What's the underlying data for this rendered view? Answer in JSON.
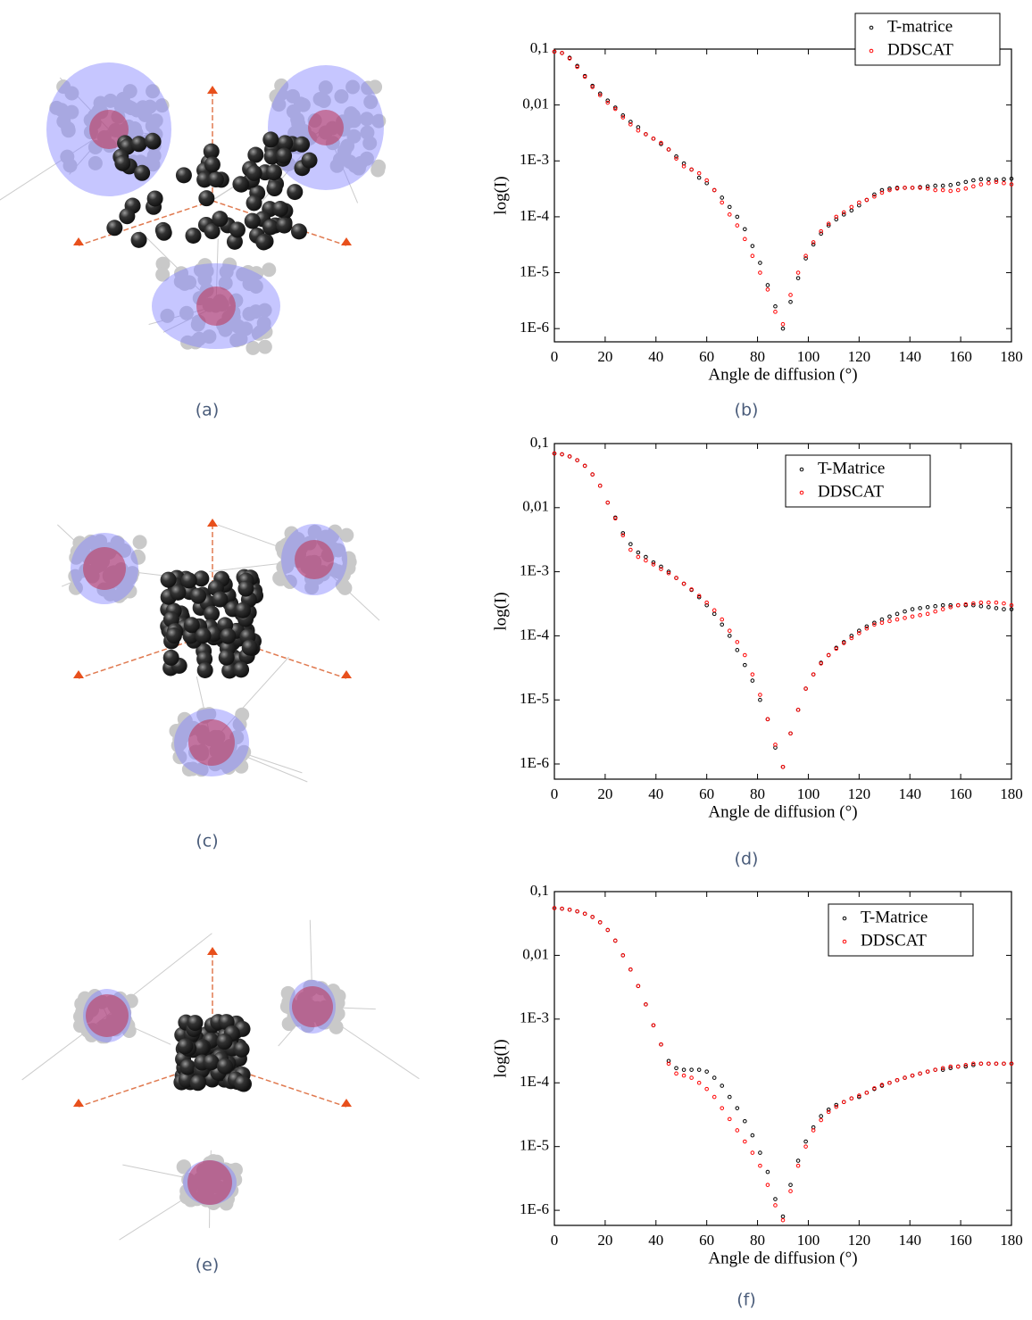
{
  "panels": [
    {
      "caption": "(a)"
    },
    {
      "caption": "(c)"
    },
    {
      "caption": "(e)"
    }
  ],
  "chart_data": [
    {
      "type": "scatter",
      "caption": "(b)",
      "xlabel": "Angle de diffusion (°)",
      "ylabel": "log(I)",
      "log_y": true,
      "legend": "upper right",
      "xlim": [
        0,
        180
      ],
      "ylim": [
        5.8e-07,
        0.1
      ],
      "xticks": [
        0,
        20,
        40,
        60,
        80,
        100,
        120,
        140,
        160,
        180
      ],
      "yticks": [
        {
          "value": 1e-06,
          "label": "1E-6"
        },
        {
          "value": 1e-05,
          "label": "1E-5"
        },
        {
          "value": 0.0001,
          "label": "1E-4"
        },
        {
          "value": 0.001,
          "label": "1E-3"
        },
        {
          "value": 0.01,
          "label": "0,01"
        },
        {
          "value": 0.1,
          "label": "0,1"
        }
      ],
      "x": [
        0,
        3,
        6,
        9,
        12,
        15,
        18,
        21,
        24,
        27,
        30,
        33,
        36,
        39,
        42,
        45,
        48,
        51,
        54,
        57,
        60,
        63,
        66,
        69,
        72,
        75,
        78,
        81,
        84,
        87,
        90,
        93,
        96,
        99,
        102,
        105,
        108,
        111,
        114,
        117,
        120,
        123,
        126,
        129,
        132,
        135,
        138,
        141,
        144,
        147,
        150,
        153,
        156,
        159,
        162,
        165,
        168,
        171,
        174,
        177,
        180
      ],
      "series": [
        {
          "name": "T-matrice",
          "color": "#000000",
          "values": [
            0.09,
            0.085,
            0.07,
            0.05,
            0.033,
            0.022,
            0.016,
            0.012,
            0.009,
            0.0065,
            0.005,
            0.004,
            0.003,
            0.0025,
            0.002,
            0.0016,
            0.0012,
            0.0009,
            0.0007,
            0.0005,
            0.0004,
            0.0003,
            0.00022,
            0.00015,
            0.0001,
            6e-05,
            3e-05,
            1.5e-05,
            6e-06,
            2.5e-06,
            1e-06,
            3e-06,
            8e-06,
            1.8e-05,
            3.2e-05,
            5e-05,
            7e-05,
            9e-05,
            0.00011,
            0.00013,
            0.00016,
            0.0002,
            0.00025,
            0.0003,
            0.00032,
            0.00033,
            0.00033,
            0.00033,
            0.00034,
            0.00035,
            0.00036,
            0.00036,
            0.00037,
            0.00039,
            0.00042,
            0.00045,
            0.00047,
            0.00047,
            0.00046,
            0.00047,
            0.00048
          ]
        },
        {
          "name": "DDSCAT",
          "color": "#ff0000",
          "values": [
            0.09,
            0.085,
            0.068,
            0.048,
            0.032,
            0.021,
            0.015,
            0.011,
            0.0085,
            0.006,
            0.0045,
            0.0035,
            0.003,
            0.0025,
            0.0021,
            0.0016,
            0.0011,
            0.0008,
            0.0007,
            0.0006,
            0.00045,
            0.0003,
            0.00018,
            0.00011,
            7e-05,
            4e-05,
            2e-05,
            1e-05,
            5e-06,
            2e-06,
            1.2e-06,
            4e-06,
            1e-05,
            2e-05,
            3.5e-05,
            5.5e-05,
            7.5e-05,
            0.0001,
            0.00012,
            0.00015,
            0.00018,
            0.0002,
            0.00023,
            0.00027,
            0.0003,
            0.00032,
            0.00033,
            0.00033,
            0.00033,
            0.00032,
            0.0003,
            0.0003,
            0.00029,
            0.0003,
            0.00032,
            0.00035,
            0.00038,
            0.0004,
            0.00042,
            0.0004,
            0.00038
          ]
        }
      ]
    },
    {
      "type": "scatter",
      "caption": "(d)",
      "xlabel": "Angle de diffusion (°)",
      "ylabel": "log(I)",
      "log_y": true,
      "legend": "upper right",
      "xlim": [
        0,
        180
      ],
      "ylim": [
        5.8e-07,
        0.1
      ],
      "xticks": [
        0,
        20,
        40,
        60,
        80,
        100,
        120,
        140,
        160,
        180
      ],
      "yticks": [
        {
          "value": 1e-06,
          "label": "1E-6"
        },
        {
          "value": 1e-05,
          "label": "1E-5"
        },
        {
          "value": 0.0001,
          "label": "1E-4"
        },
        {
          "value": 0.001,
          "label": "1E-3"
        },
        {
          "value": 0.01,
          "label": "0,01"
        },
        {
          "value": 0.1,
          "label": "0,1"
        }
      ],
      "x": [
        0,
        3,
        6,
        9,
        12,
        15,
        18,
        21,
        24,
        27,
        30,
        33,
        36,
        39,
        42,
        45,
        48,
        51,
        54,
        57,
        60,
        63,
        66,
        69,
        72,
        75,
        78,
        81,
        84,
        87,
        90,
        93,
        96,
        99,
        102,
        105,
        108,
        111,
        114,
        117,
        120,
        123,
        126,
        129,
        132,
        135,
        138,
        141,
        144,
        147,
        150,
        153,
        156,
        159,
        162,
        165,
        168,
        171,
        174,
        177,
        180
      ],
      "series": [
        {
          "name": "T-Matrice",
          "color": "#000000",
          "values": [
            0.07,
            0.068,
            0.063,
            0.055,
            0.045,
            0.033,
            0.022,
            0.012,
            0.007,
            0.004,
            0.0027,
            0.002,
            0.0017,
            0.0014,
            0.0012,
            0.001,
            0.0008,
            0.00065,
            0.00052,
            0.0004,
            0.0003,
            0.00022,
            0.00015,
            0.0001,
            6e-05,
            3.5e-05,
            2e-05,
            1e-05,
            5e-06,
            1.8e-06,
            9e-07,
            3e-06,
            7e-06,
            1.5e-05,
            2.5e-05,
            3.8e-05,
            5e-05,
            6.5e-05,
            8e-05,
            0.0001,
            0.00012,
            0.00014,
            0.00016,
            0.00018,
            0.0002,
            0.00022,
            0.00024,
            0.00026,
            0.00027,
            0.00028,
            0.00029,
            0.0003,
            0.0003,
            0.0003,
            0.0003,
            0.0003,
            0.00029,
            0.00028,
            0.00027,
            0.00026,
            0.00026
          ]
        },
        {
          "name": "DDSCAT",
          "color": "#ff0000",
          "values": [
            0.07,
            0.068,
            0.063,
            0.055,
            0.045,
            0.033,
            0.022,
            0.012,
            0.0068,
            0.0037,
            0.0022,
            0.0017,
            0.0015,
            0.0013,
            0.0011,
            0.00095,
            0.0008,
            0.00065,
            0.00053,
            0.00042,
            0.00033,
            0.00025,
            0.00018,
            0.00012,
            8e-05,
            5e-05,
            2.5e-05,
            1.2e-05,
            5e-06,
            2e-06,
            9e-07,
            3e-06,
            7e-06,
            1.5e-05,
            2.5e-05,
            3.7e-05,
            5e-05,
            6.3e-05,
            7.7e-05,
            9.2e-05,
            0.00011,
            0.00013,
            0.00015,
            0.00016,
            0.00017,
            0.00018,
            0.00019,
            0.0002,
            0.00021,
            0.00022,
            0.00024,
            0.00026,
            0.00028,
            0.0003,
            0.00031,
            0.00032,
            0.00033,
            0.00033,
            0.00033,
            0.00032,
            0.0003
          ]
        }
      ]
    },
    {
      "type": "scatter",
      "caption": "(f)",
      "xlabel": "Angle de diffusion (°)",
      "ylabel": "log(I)",
      "log_y": true,
      "legend": "upper right",
      "xlim": [
        0,
        180
      ],
      "ylim": [
        5.8e-07,
        0.1
      ],
      "xticks": [
        0,
        20,
        40,
        60,
        80,
        100,
        120,
        140,
        160,
        180
      ],
      "yticks": [
        {
          "value": 1e-06,
          "label": "1E-6"
        },
        {
          "value": 1e-05,
          "label": "1E-5"
        },
        {
          "value": 0.0001,
          "label": "1E-4"
        },
        {
          "value": 0.001,
          "label": "1E-3"
        },
        {
          "value": 0.01,
          "label": "0,01"
        },
        {
          "value": 0.1,
          "label": "0,1"
        }
      ],
      "x": [
        0,
        3,
        6,
        9,
        12,
        15,
        18,
        21,
        24,
        27,
        30,
        33,
        36,
        39,
        42,
        45,
        48,
        51,
        54,
        57,
        60,
        63,
        66,
        69,
        72,
        75,
        78,
        81,
        84,
        87,
        90,
        93,
        96,
        99,
        102,
        105,
        108,
        111,
        114,
        117,
        120,
        123,
        126,
        129,
        132,
        135,
        138,
        141,
        144,
        147,
        150,
        153,
        156,
        159,
        162,
        165,
        168,
        171,
        174,
        177,
        180
      ],
      "series": [
        {
          "name": "T-Matrice",
          "color": "#000000",
          "values": [
            0.055,
            0.054,
            0.052,
            0.049,
            0.045,
            0.04,
            0.033,
            0.025,
            0.017,
            0.01,
            0.006,
            0.0033,
            0.0017,
            0.0008,
            0.0004,
            0.00022,
            0.00017,
            0.00016,
            0.00016,
            0.00016,
            0.00015,
            0.00012,
            9e-05,
            6e-05,
            4e-05,
            2.5e-05,
            1.5e-05,
            8e-06,
            4e-06,
            1.5e-06,
            8e-07,
            2.5e-06,
            6e-06,
            1.2e-05,
            2e-05,
            3e-05,
            3.8e-05,
            4.5e-05,
            5e-05,
            5.7e-05,
            6e-05,
            7e-05,
            8e-05,
            9e-05,
            0.0001,
            0.00011,
            0.00012,
            0.00013,
            0.00014,
            0.00015,
            0.00016,
            0.00016,
            0.00017,
            0.00018,
            0.00018,
            0.00019,
            0.0002,
            0.0002,
            0.0002,
            0.0002,
            0.0002
          ]
        },
        {
          "name": "DDSCAT",
          "color": "#ff0000",
          "values": [
            0.055,
            0.054,
            0.052,
            0.049,
            0.045,
            0.04,
            0.033,
            0.025,
            0.017,
            0.01,
            0.006,
            0.0033,
            0.0017,
            0.0008,
            0.0004,
            0.0002,
            0.00014,
            0.00013,
            0.00012,
            0.0001,
            8e-05,
            6e-05,
            4e-05,
            2.7e-05,
            1.8e-05,
            1.2e-05,
            8e-06,
            5e-06,
            2.5e-06,
            1.2e-06,
            7e-07,
            2e-06,
            5e-06,
            1e-05,
            1.8e-05,
            2.6e-05,
            3.5e-05,
            4.2e-05,
            5e-05,
            5.7e-05,
            6.3e-05,
            7e-05,
            8.2e-05,
            9.3e-05,
            0.0001,
            0.00011,
            0.00012,
            0.00013,
            0.00014,
            0.00015,
            0.00016,
            0.00017,
            0.00018,
            0.00018,
            0.00019,
            0.0002,
            0.0002,
            0.0002,
            0.0002,
            0.0002,
            0.0002
          ]
        }
      ]
    }
  ]
}
